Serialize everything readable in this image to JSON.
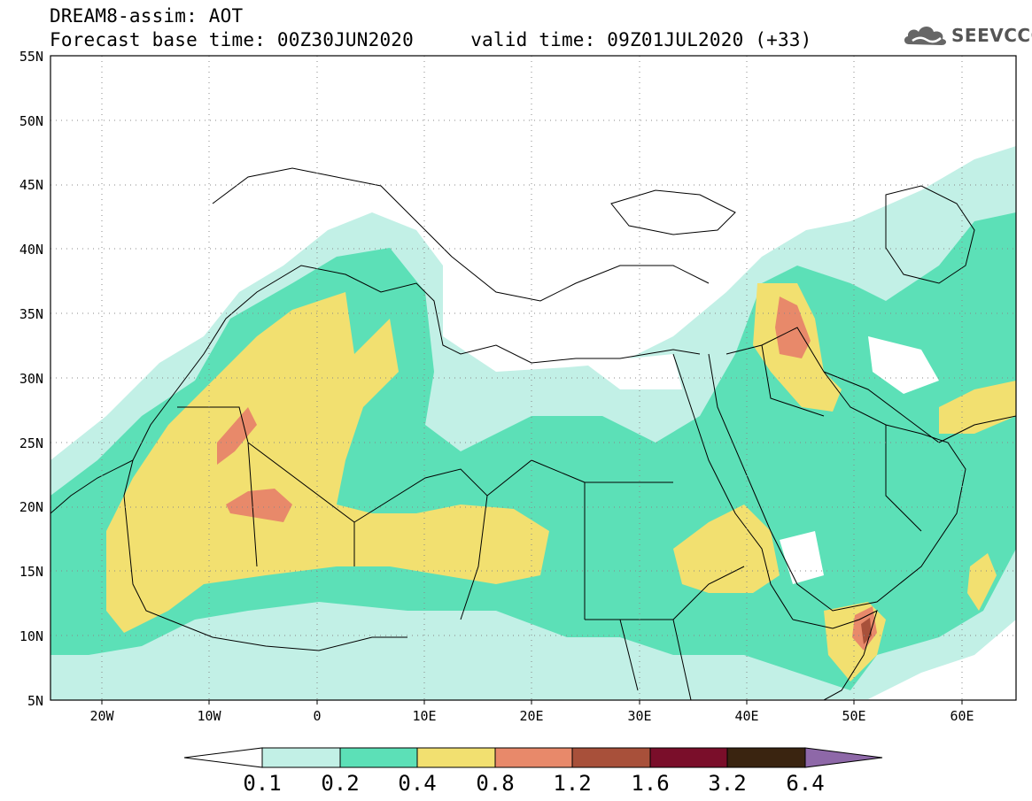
{
  "header": {
    "line1": "DREAM8-assim: AOT",
    "line2": "Forecast base time: 00Z30JUN2020     valid time: 09Z01JUL2020 (+33)"
  },
  "logo": {
    "text": "SEEVCCC",
    "icon": "cloud-logo-icon"
  },
  "map": {
    "lat_labels": [
      "55N",
      "50N",
      "45N",
      "40N",
      "35N",
      "30N",
      "25N",
      "20N",
      "15N",
      "10N",
      "5N"
    ],
    "lon_labels": [
      "20W",
      "10W",
      "0",
      "10E",
      "20E",
      "30E",
      "40E",
      "50E",
      "60E"
    ],
    "lon_range": [
      -25,
      65
    ],
    "lat_range": [
      5,
      55
    ],
    "gridlines": "dotted"
  },
  "legend": {
    "colors": [
      "#ffffff",
      "#c2f0e6",
      "#5ce0b7",
      "#f2e070",
      "#e8896a",
      "#a8503a",
      "#7a0e2a",
      "#3a2410",
      "#8e68a8"
    ],
    "labels": [
      "0.1",
      "0.2",
      "0.4",
      "0.8",
      "1.2",
      "1.6",
      "3.2",
      "6.4"
    ]
  }
}
